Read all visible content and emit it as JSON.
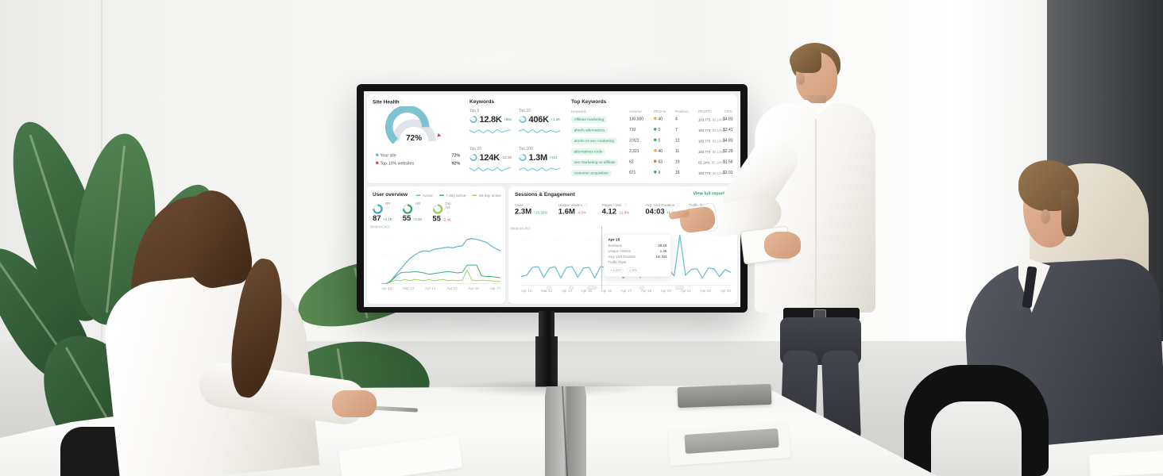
{
  "dashboard": {
    "site_health": {
      "title": "Site Health",
      "score": "72%",
      "legend": [
        {
          "label": "Your site",
          "value": "72%",
          "color": "#5fb4c9"
        },
        {
          "label": "Top-10% websites",
          "value": "92%",
          "color": "#d64550"
        }
      ]
    },
    "keywords": {
      "title": "Keywords",
      "stats": [
        {
          "label": "Top 5",
          "value": "12.8K",
          "delta": "+981",
          "dir": "up"
        },
        {
          "label": "Top 10",
          "value": "406K",
          "delta": "+1.3K",
          "dir": "up"
        },
        {
          "label": "Top 20",
          "value": "124K",
          "delta": "-12.3K",
          "dir": "down"
        },
        {
          "label": "Top 100",
          "value": "1.3M",
          "delta": "+321",
          "dir": "up"
        }
      ]
    },
    "top_keywords": {
      "title": "Top Keywords",
      "headers": [
        "Keyword",
        "Volume",
        "PKD %",
        "Position",
        "PKD/TC",
        "CPC"
      ],
      "rows": [
        {
          "keyword": "Affiliate marketing",
          "volume": "130,000",
          "kd": "40",
          "kd_tone": "orange",
          "position": "4",
          "tc1": "183,773",
          "tc2": "65.14%",
          "bar_tone": "green",
          "cpc": "$4.83"
        },
        {
          "keyword": "ahrefs alternatives",
          "volume": "710",
          "kd": "0",
          "kd_tone": "green",
          "position": "7",
          "tc1": "183,773",
          "tc2": "65.14%",
          "bar_tone": "green",
          "cpc": "$3.41"
        },
        {
          "keyword": "ahrefs vs seo marketing",
          "volume": "3,922",
          "kd": "0",
          "kd_tone": "green",
          "position": "12",
          "tc1": "183,773",
          "tc2": "65.14%",
          "bar_tone": "green",
          "cpc": "$4.83"
        },
        {
          "keyword": "alternatives tools",
          "volume": "2,321",
          "kd": "40",
          "kd_tone": "orange",
          "position": "11",
          "tc1": "183,773",
          "tc2": "65.14%",
          "bar_tone": "green",
          "cpc": "$2.29"
        },
        {
          "keyword": "seo marketing vs affiliate",
          "volume": "62",
          "kd": "63",
          "kd_tone": "red",
          "position": "19",
          "tc1": "61.14%",
          "tc2": "65.14%",
          "bar_tone": "orange",
          "cpc": "$1.58"
        },
        {
          "keyword": "customer acquisition",
          "volume": "671",
          "kd": "9",
          "kd_tone": "green",
          "position": "15",
          "tc1": "183,773",
          "tc2": "65.14%",
          "bar_tone": "green",
          "cpc": "$3.01"
        }
      ]
    },
    "user_overview": {
      "title": "User overview",
      "legend": [
        {
          "label": "Active",
          "color": "#62b8cc"
        },
        {
          "label": "7-day active",
          "color": "#3fae73"
        },
        {
          "label": "28-day active",
          "color": "#9ed763"
        }
      ],
      "stats": [
        {
          "label": "DR",
          "value": "87",
          "delta": "+4.1K",
          "dir": "up",
          "ring": "#4a9fc3"
        },
        {
          "label": "UR",
          "value": "55",
          "delta": "+3.4K",
          "dir": "up",
          "ring": "#2fae6e"
        },
        {
          "label": "Top AR",
          "value": "55",
          "delta": "-2.4K",
          "dir": "down",
          "ring": "#8ed14f"
        }
      ]
    },
    "sessions": {
      "title": "Sessions & Engagement",
      "view_full_report": "View full report",
      "stats": [
        {
          "label": "Visits",
          "value": "2.3M",
          "delta": "+10.32%",
          "dir": "up"
        },
        {
          "label": "Unique Visitors",
          "value": "1.6M",
          "delta": "-4.6%",
          "dir": "down"
        },
        {
          "label": "Pages / Visit",
          "value": "4.12",
          "delta": "-11.8%",
          "dir": "down"
        },
        {
          "label": "Avg. Visit Duration",
          "value": "04:03",
          "delta": "+1.32%",
          "dir": "up"
        },
        {
          "label": "Traffic Rank",
          "value": "",
          "delta": "",
          "dir": "up"
        }
      ],
      "tooltip": {
        "date": "Apr 15",
        "rows": [
          {
            "label": "Sessions",
            "value": "28.2K"
          },
          {
            "label": "Unique Visitors",
            "value": "1.3K"
          },
          {
            "label": "Avg. Visit Duration",
            "value": "1m 32s"
          },
          {
            "label": "Traffic Rank",
            "value": ""
          }
        ],
        "rank_chips": [
          "1,072",
          "972"
        ]
      }
    }
  },
  "chart_data": [
    {
      "type": "line",
      "title": "User overview",
      "ylim": [
        0,
        8000
      ],
      "yticks": [
        "8K",
        "6K",
        "4K",
        "2K",
        "0"
      ],
      "categories": [
        "Apr 12",
        "Mar 13",
        "Apr 14",
        "Apr 15",
        "Apr 16",
        "Apr 17"
      ],
      "series": [
        {
          "name": "Active",
          "color": "#62b8cc",
          "w": 2.5,
          "values": [
            0,
            0,
            400,
            1200,
            2000,
            2800,
            3500,
            4000,
            4400,
            4600,
            4500,
            4800,
            4900,
            5000,
            5100,
            5000,
            5200,
            5300,
            6200,
            6300,
            6200,
            6000,
            5800,
            5300,
            4900,
            4600
          ]
        },
        {
          "name": "7-day active",
          "color": "#3fae73",
          "w": 2,
          "values": [
            0,
            0,
            300,
            1000,
            1500,
            1600,
            1600,
            1700,
            1600,
            1500,
            1300,
            1400,
            1500,
            1600,
            1700,
            1600,
            1500,
            1600,
            2600,
            2600,
            2600,
            1100,
            1000,
            1000,
            900,
            800
          ]
        },
        {
          "name": "28-day active",
          "color": "#9ed763",
          "w": 2,
          "values": [
            0,
            0,
            200,
            500,
            400,
            600,
            400,
            600,
            500,
            400,
            600,
            400,
            500,
            600,
            400,
            500,
            400,
            500,
            1900,
            500,
            400,
            500,
            400,
            400,
            300,
            300
          ]
        }
      ]
    },
    {
      "type": "line",
      "title": "Sessions & Engagement",
      "ylim": [
        0,
        8000
      ],
      "yticks": [
        "8K",
        "6K",
        "4K",
        "2K",
        "0"
      ],
      "categories": [
        "Apr 12",
        "Mar 13",
        "Apr 14",
        "Apr 15",
        "Apr 16",
        "Apr 17",
        "Apr 19",
        "Apr 20",
        "Apr 21",
        "Apr 22",
        "Apr 23"
      ],
      "series": [
        {
          "name": "Sessions",
          "color": "#6fbdd1",
          "w": 2.5,
          "values": [
            1200,
            1400,
            2500,
            2600,
            1100,
            2400,
            2600,
            1000,
            2500,
            2600,
            1100,
            2400,
            2500,
            1000,
            2600,
            2500,
            1200,
            2400,
            1000,
            1700,
            2400,
            1100,
            2300,
            2400,
            1200,
            2500,
            2300,
            1300,
            7000,
            1400,
            2200,
            2300,
            1000,
            2400,
            2300,
            1200,
            2200,
            1800
          ]
        }
      ]
    },
    {
      "type": "gauge",
      "title": "Site Health",
      "value": 72,
      "benchmark": 92,
      "unit": "%"
    },
    {
      "type": "line",
      "title": "Keywords sparklines",
      "ylim": [
        0,
        4
      ],
      "series": [
        {
          "name": "Top 5",
          "color": "#6fc2d4",
          "w": 2,
          "values": [
            2.6,
            1.6,
            2.8,
            1.5,
            2.7,
            1.4,
            2.9,
            1.8,
            2.4,
            2.8
          ]
        },
        {
          "name": "Top 10",
          "color": "#6fc2d4",
          "w": 2,
          "values": [
            2.2,
            3.0,
            1.6,
            2.9,
            1.5,
            2.8,
            1.7,
            2.6,
            1.8,
            2.4
          ]
        },
        {
          "name": "Top 20",
          "color": "#6fc2d4",
          "w": 2,
          "values": [
            2.8,
            1.5,
            2.9,
            1.4,
            2.6,
            1.6,
            3.0,
            1.5,
            2.4,
            2.9
          ]
        },
        {
          "name": "Top 100",
          "color": "#6fc2d4",
          "w": 2,
          "values": [
            2.0,
            2.8,
            1.6,
            2.6,
            1.5,
            2.9,
            1.6,
            2.7,
            2.1,
            2.6
          ]
        }
      ]
    }
  ]
}
